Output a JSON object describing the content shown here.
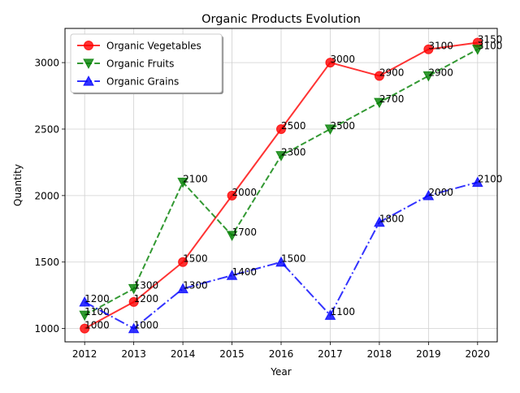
{
  "chart_data": {
    "type": "line",
    "title": "Organic Products Evolution",
    "xlabel": "Year",
    "ylabel": "Quantity",
    "x": [
      2012,
      2013,
      2014,
      2015,
      2016,
      2017,
      2018,
      2019,
      2020
    ],
    "xlim": [
      2011.6,
      2020.4
    ],
    "ylim": [
      900,
      3257
    ],
    "yticks": [
      1000,
      1500,
      2000,
      2500,
      3000
    ],
    "grid": true,
    "legend_position": "top-left",
    "series": [
      {
        "name": "Organic Vegetables",
        "values": [
          1000,
          1200,
          1500,
          2000,
          2500,
          3000,
          2900,
          3100,
          3150
        ],
        "color": "#ff0000",
        "line_style": "solid",
        "marker": "circle"
      },
      {
        "name": "Organic Fruits",
        "values": [
          1100,
          1300,
          2100,
          1700,
          2300,
          2500,
          2700,
          2900,
          3100
        ],
        "color": "#008000",
        "line_style": "dashed",
        "marker": "triangle-down"
      },
      {
        "name": "Organic Grains",
        "values": [
          1200,
          1000,
          1300,
          1400,
          1500,
          1100,
          1800,
          2000,
          2100
        ],
        "color": "#0000ff",
        "line_style": "dashdot",
        "marker": "triangle-up"
      }
    ]
  }
}
